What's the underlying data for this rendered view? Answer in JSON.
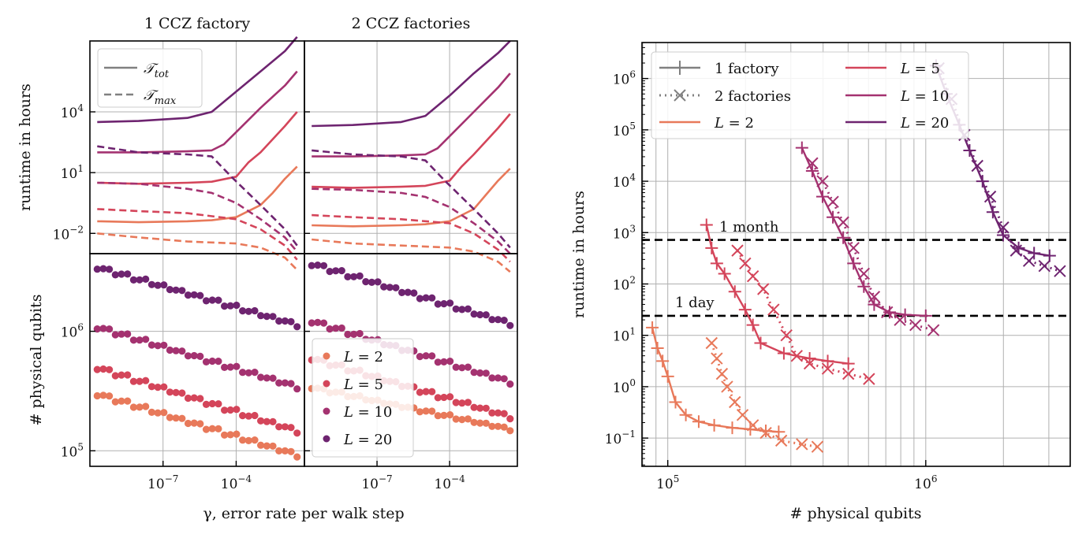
{
  "colors": {
    "L2": "#e8795a",
    "L5": "#d4455a",
    "L10": "#a43270",
    "L20": "#6e2470",
    "gray": "#808080",
    "black": "#000000"
  },
  "chart_data": [
    {
      "id": "left-top",
      "type": "line",
      "panels": [
        {
          "title": "1 CCZ factory",
          "key": "p1"
        },
        {
          "title": "2 CCZ factories",
          "key": "p2"
        }
      ],
      "ylabel": "runtime in hours",
      "xscale": "log",
      "yscale": "log",
      "xlim_log10": [
        -10,
        -1.2
      ],
      "ylim_log10": [
        -3.0,
        7.5
      ],
      "yticks": [
        {
          "v": 4,
          "label": "10^4",
          "base": "10",
          "exp": "4"
        },
        {
          "v": 1,
          "label": "10^1",
          "base": "10",
          "exp": "1"
        },
        {
          "v": -2,
          "label": "10^-2",
          "base": "10",
          "exp": "−2"
        }
      ],
      "legend": [
        {
          "label": "T_tot",
          "main": "𝒯",
          "sub": "tot",
          "style": "solid"
        },
        {
          "label": "T_max",
          "main": "𝒯",
          "sub": "max",
          "style": "dashed"
        }
      ],
      "series": {
        "p1": [
          {
            "L": 2,
            "kind": "tot",
            "x": [
              -9.7,
              -8,
              -6,
              -5,
              -4,
              -3,
              -2.5,
              -2,
              -1.5
            ],
            "y": [
              -1.4,
              -1.45,
              -1.4,
              -1.35,
              -1.2,
              -0.6,
              0.0,
              0.7,
              1.3
            ]
          },
          {
            "L": 5,
            "kind": "tot",
            "x": [
              -9.7,
              -8,
              -6,
              -5,
              -4,
              -3.5,
              -3,
              -2,
              -1.5
            ],
            "y": [
              0.5,
              0.45,
              0.5,
              0.55,
              0.8,
              1.5,
              2.0,
              3.3,
              4.0
            ]
          },
          {
            "L": 10,
            "kind": "tot",
            "x": [
              -9.7,
              -8,
              -6,
              -5,
              -4.5,
              -4,
              -3,
              -2,
              -1.5
            ],
            "y": [
              2.0,
              2.0,
              2.05,
              2.1,
              2.4,
              3.0,
              4.2,
              5.3,
              6.0
            ]
          },
          {
            "L": 20,
            "kind": "tot",
            "x": [
              -9.7,
              -8,
              -6,
              -5,
              -4.5,
              -4,
              -3,
              -2,
              -1.5
            ],
            "y": [
              3.5,
              3.55,
              3.7,
              4.0,
              4.5,
              5.0,
              6.0,
              7.0,
              7.7
            ]
          },
          {
            "L": 2,
            "kind": "max",
            "x": [
              -9.7,
              -8,
              -6,
              -4,
              -3,
              -2,
              -1.5
            ],
            "y": [
              -2.0,
              -2.2,
              -2.4,
              -2.5,
              -2.7,
              -3.2,
              -3.8
            ]
          },
          {
            "L": 5,
            "kind": "max",
            "x": [
              -9.7,
              -8,
              -6,
              -4,
              -3,
              -2,
              -1.5
            ],
            "y": [
              -0.8,
              -0.9,
              -1.0,
              -1.3,
              -1.8,
              -2.6,
              -3.3
            ]
          },
          {
            "L": 10,
            "kind": "max",
            "x": [
              -9.7,
              -8,
              -6,
              -5,
              -4,
              -3,
              -2,
              -1.5
            ],
            "y": [
              0.5,
              0.45,
              0.2,
              0.0,
              -0.5,
              -1.3,
              -2.2,
              -2.9
            ]
          },
          {
            "L": 20,
            "kind": "max",
            "x": [
              -9.7,
              -8,
              -6,
              -5,
              -4.2,
              -3,
              -2,
              -1.5
            ],
            "y": [
              2.3,
              2.0,
              1.9,
              1.8,
              0.8,
              -0.6,
              -1.8,
              -2.6
            ]
          }
        ],
        "p2": [
          {
            "L": 2,
            "kind": "tot",
            "x": [
              -9.7,
              -8,
              -6,
              -5,
              -4,
              -3,
              -2.5,
              -2,
              -1.5
            ],
            "y": [
              -1.6,
              -1.65,
              -1.6,
              -1.55,
              -1.4,
              -0.8,
              -0.1,
              0.6,
              1.2
            ]
          },
          {
            "L": 5,
            "kind": "tot",
            "x": [
              -9.7,
              -8,
              -6,
              -5,
              -4,
              -3.5,
              -3,
              -2,
              -1.5
            ],
            "y": [
              0.3,
              0.25,
              0.3,
              0.35,
              0.6,
              1.3,
              1.9,
              3.2,
              3.9
            ]
          },
          {
            "L": 10,
            "kind": "tot",
            "x": [
              -9.7,
              -8,
              -6,
              -5,
              -4.5,
              -4,
              -3,
              -2,
              -1.5
            ],
            "y": [
              1.8,
              1.8,
              1.85,
              1.9,
              2.2,
              2.8,
              4.0,
              5.2,
              5.9
            ]
          },
          {
            "L": 20,
            "kind": "tot",
            "x": [
              -9.7,
              -8,
              -6,
              -5,
              -4.5,
              -4,
              -3,
              -2,
              -1.5
            ],
            "y": [
              3.3,
              3.35,
              3.5,
              3.8,
              4.3,
              4.8,
              5.9,
              6.9,
              7.5
            ]
          },
          {
            "L": 2,
            "kind": "max",
            "x": [
              -9.7,
              -8,
              -6,
              -4,
              -3,
              -2,
              -1.5
            ],
            "y": [
              -2.3,
              -2.5,
              -2.6,
              -2.7,
              -2.9,
              -3.4,
              -3.9
            ]
          },
          {
            "L": 5,
            "kind": "max",
            "x": [
              -9.7,
              -8,
              -6,
              -4,
              -3,
              -2,
              -1.5
            ],
            "y": [
              -1.1,
              -1.2,
              -1.3,
              -1.5,
              -2.0,
              -2.8,
              -3.4
            ]
          },
          {
            "L": 10,
            "kind": "max",
            "x": [
              -9.7,
              -8,
              -6,
              -5,
              -4,
              -3,
              -2,
              -1.5
            ],
            "y": [
              0.2,
              0.15,
              0.0,
              -0.2,
              -0.7,
              -1.5,
              -2.4,
              -3.0
            ]
          },
          {
            "L": 20,
            "kind": "max",
            "x": [
              -9.7,
              -8,
              -6,
              -5,
              -4.2,
              -3,
              -2,
              -1.5
            ],
            "y": [
              2.1,
              1.9,
              1.8,
              1.6,
              0.6,
              -0.8,
              -2.0,
              -2.7
            ]
          }
        ]
      }
    },
    {
      "id": "left-bottom",
      "type": "scatter",
      "ylabel": "# physical qubits",
      "xlabel": "γ, error rate per walk step",
      "xscale": "log",
      "yscale": "log",
      "xlim_log10": [
        -10,
        -1.2
      ],
      "ylim_log10": [
        4.87,
        6.65
      ],
      "xticks": [
        {
          "v": -7,
          "label": "10^-7",
          "base": "10",
          "exp": "−7"
        },
        {
          "v": -4,
          "label": "10^-4",
          "base": "10",
          "exp": "−4"
        }
      ],
      "yticks": [
        {
          "v": 6,
          "label": "10^6",
          "base": "10",
          "exp": "6"
        },
        {
          "v": 5,
          "label": "10^5",
          "base": "10",
          "exp": "5"
        }
      ],
      "legend": [
        {
          "label": "L = 2",
          "pre": "L",
          "val": "2"
        },
        {
          "label": "L = 5",
          "pre": "L",
          "val": "5"
        },
        {
          "label": "L = 10",
          "pre": "L",
          "val": "10"
        },
        {
          "label": "L = 20",
          "pre": "L",
          "val": "20"
        }
      ],
      "series": {
        "p1": [
          {
            "L": 2,
            "start": 5.46,
            "end": 4.95
          },
          {
            "L": 5,
            "start": 5.68,
            "end": 5.15
          },
          {
            "L": 10,
            "start": 6.02,
            "end": 5.52
          },
          {
            "L": 20,
            "start": 6.52,
            "end": 6.04
          }
        ],
        "p2": [
          {
            "L": 2,
            "start": 5.52,
            "end": 5.17
          },
          {
            "L": 5,
            "start": 5.76,
            "end": 5.27
          },
          {
            "L": 10,
            "start": 6.07,
            "end": 5.56
          },
          {
            "L": 20,
            "start": 6.55,
            "end": 6.05
          }
        ]
      }
    },
    {
      "id": "right",
      "type": "scatter",
      "xlabel": "# physical qubits",
      "ylabel": "runtime in hours",
      "xscale": "log",
      "yscale": "log",
      "xlim_log10": [
        4.9,
        6.56
      ],
      "ylim_log10": [
        -1.55,
        6.7
      ],
      "xticks": [
        {
          "v": 5,
          "label": "10^5",
          "base": "10",
          "exp": "5"
        },
        {
          "v": 6,
          "label": "10^6",
          "base": "10",
          "exp": "6"
        }
      ],
      "yticks": [
        {
          "v": 6,
          "label": "10^6",
          "base": "10",
          "exp": "6"
        },
        {
          "v": 5,
          "label": "10^5",
          "base": "10",
          "exp": "5"
        },
        {
          "v": 4,
          "label": "10^4",
          "base": "10",
          "exp": "4"
        },
        {
          "v": 3,
          "label": "10^3",
          "base": "10",
          "exp": "3"
        },
        {
          "v": 2,
          "label": "10^2",
          "base": "10",
          "exp": "2"
        },
        {
          "v": 1,
          "label": "10^1",
          "base": "10",
          "exp": "1"
        },
        {
          "v": 0,
          "label": "10^0",
          "base": "10",
          "exp": "0"
        },
        {
          "v": -1,
          "label": "10^-1",
          "base": "10",
          "exp": "−1"
        }
      ],
      "hlines": [
        {
          "value_hours": 720,
          "label": "1 month"
        },
        {
          "value_hours": 24,
          "label": "1 day"
        }
      ],
      "legend": [
        {
          "label": "1 factory",
          "kind": "line-plus",
          "color": "gray"
        },
        {
          "label": "2 factories",
          "kind": "dot-x",
          "color": "gray"
        },
        {
          "label": "L = 2",
          "kind": "line",
          "color": "L2",
          "pre": "L",
          "val": "2"
        },
        {
          "label": "L = 5",
          "kind": "line",
          "color": "L5",
          "pre": "L",
          "val": "5"
        },
        {
          "label": "L = 10",
          "kind": "line",
          "color": "L10",
          "pre": "L",
          "val": "10"
        },
        {
          "label": "L = 20",
          "kind": "line",
          "color": "L20",
          "pre": "L",
          "val": "20"
        }
      ],
      "series": [
        {
          "L": 2,
          "factories": 1,
          "x": [
            4.94,
            4.96,
            4.98,
            5.0,
            5.03,
            5.07,
            5.12,
            5.18,
            5.25,
            5.32,
            5.38,
            5.43
          ],
          "y": [
            1.15,
            0.75,
            0.5,
            0.2,
            -0.3,
            -0.55,
            -0.68,
            -0.75,
            -0.8,
            -0.83,
            -0.86,
            -0.88
          ]
        },
        {
          "L": 2,
          "factories": 2,
          "x": [
            5.17,
            5.19,
            5.21,
            5.23,
            5.26,
            5.29,
            5.33,
            5.38,
            5.44,
            5.52,
            5.58
          ],
          "y": [
            0.85,
            0.55,
            0.25,
            0.0,
            -0.3,
            -0.55,
            -0.75,
            -0.9,
            -1.05,
            -1.12,
            -1.17
          ]
        },
        {
          "L": 5,
          "factories": 1,
          "x": [
            5.15,
            5.17,
            5.19,
            5.22,
            5.26,
            5.3,
            5.33,
            5.36,
            5.45,
            5.55,
            5.62,
            5.7
          ],
          "y": [
            3.15,
            2.7,
            2.4,
            2.2,
            1.85,
            1.5,
            1.2,
            0.85,
            0.65,
            0.55,
            0.5,
            0.45
          ]
        },
        {
          "L": 5,
          "factories": 2,
          "x": [
            5.27,
            5.3,
            5.33,
            5.37,
            5.41,
            5.46,
            5.5,
            5.55,
            5.62,
            5.7,
            5.78
          ],
          "y": [
            2.65,
            2.4,
            2.15,
            1.9,
            1.5,
            1.0,
            0.6,
            0.45,
            0.35,
            0.25,
            0.15
          ]
        },
        {
          "L": 10,
          "factories": 1,
          "x": [
            5.52,
            5.56,
            5.6,
            5.64,
            5.68,
            5.72,
            5.76,
            5.8,
            5.86,
            5.92,
            6.0
          ],
          "y": [
            4.65,
            4.2,
            3.7,
            3.3,
            2.9,
            2.4,
            1.95,
            1.6,
            1.45,
            1.4,
            1.38
          ]
        },
        {
          "L": 10,
          "factories": 2,
          "x": [
            5.56,
            5.6,
            5.64,
            5.68,
            5.72,
            5.76,
            5.8,
            5.85,
            5.9,
            5.96,
            6.03
          ],
          "y": [
            4.35,
            4.0,
            3.6,
            3.2,
            2.7,
            2.2,
            1.75,
            1.45,
            1.3,
            1.2,
            1.1
          ]
        },
        {
          "L": 20,
          "factories": 1,
          "x": [
            6.04,
            6.08,
            6.13,
            6.17,
            6.22,
            6.26,
            6.3,
            6.36,
            6.42,
            6.48
          ],
          "y": [
            6.25,
            5.7,
            5.1,
            4.6,
            4.0,
            3.4,
            2.95,
            2.7,
            2.6,
            2.55
          ]
        },
        {
          "L": 20,
          "factories": 2,
          "x": [
            6.05,
            6.1,
            6.15,
            6.2,
            6.25,
            6.3,
            6.35,
            6.4,
            6.46,
            6.52
          ],
          "y": [
            6.2,
            5.6,
            4.9,
            4.3,
            3.7,
            3.1,
            2.65,
            2.45,
            2.35,
            2.25
          ]
        }
      ]
    }
  ]
}
